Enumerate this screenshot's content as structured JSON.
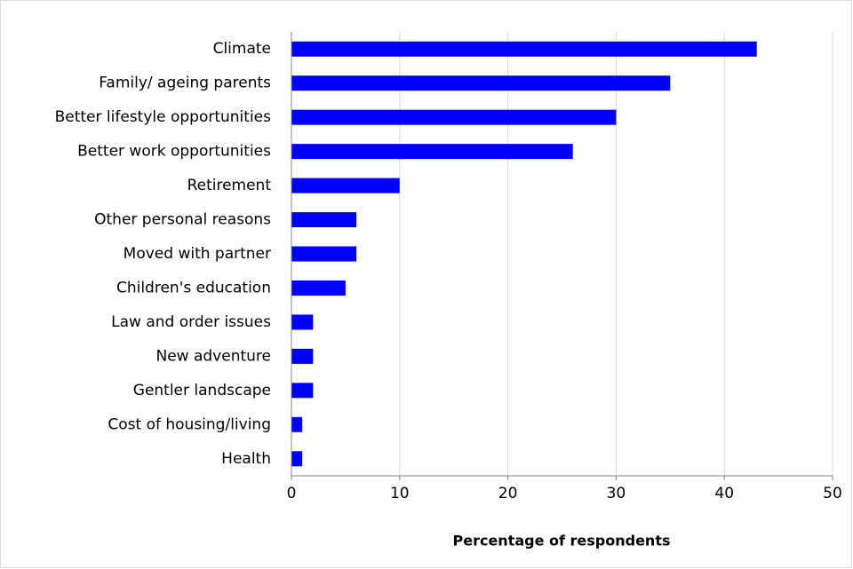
{
  "chart_data": {
    "type": "bar",
    "orientation": "horizontal",
    "x_label": "Percentage of respondents",
    "categories": [
      "Climate",
      "Family/ ageing parents",
      "Better lifestyle opportunities",
      "Better work opportunities",
      "Retirement",
      "Other personal reasons",
      "Moved with partner",
      "Children's education",
      "Law and order issues",
      "New adventure",
      "Gentler landscape",
      "Cost of housing/living",
      "Health"
    ],
    "values": [
      43,
      35,
      30,
      26,
      10,
      6,
      6,
      5,
      2,
      2,
      2,
      1,
      1
    ],
    "color": "#0000ff",
    "xlim": [
      0,
      50
    ],
    "xticks": [
      0,
      10,
      20,
      30,
      40,
      50
    ],
    "grid": true
  }
}
